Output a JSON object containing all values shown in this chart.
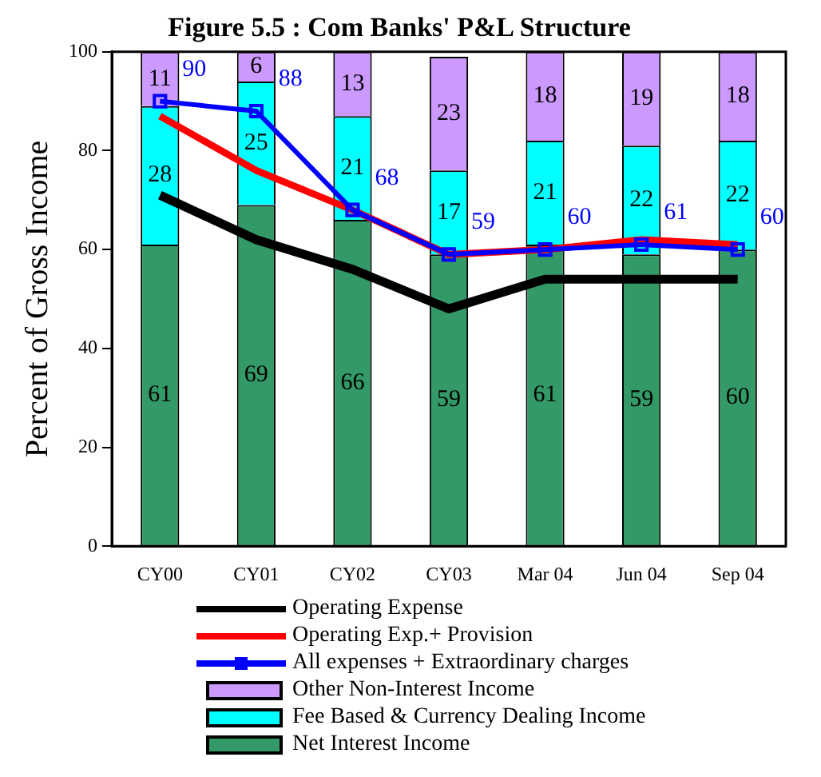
{
  "chart_data": {
    "type": "bar",
    "title": "Figure 5.5 : Com Banks' P&L Structure",
    "ylabel": "Percent of Gross Income",
    "stacked": true,
    "categories": [
      "CY00",
      "CY01",
      "CY02",
      "CY03",
      "Mar 04",
      "Jun 04",
      "Sep 04"
    ],
    "series": [
      {
        "name": "Net Interest Income",
        "color": "#339966",
        "values": [
          61,
          69,
          66,
          59,
          61,
          59,
          60
        ],
        "value_labels": [
          "61",
          "69",
          "66",
          "59",
          "61",
          "59",
          "60"
        ]
      },
      {
        "name": "Fee Based & Currency Dealing Income",
        "color": "#00ffff",
        "values": [
          28,
          25,
          21,
          17,
          21,
          22,
          22
        ],
        "value_labels": [
          "28",
          "25",
          "21",
          "17",
          "21",
          "22",
          "22"
        ]
      },
      {
        "name": "Other Non-Interest Income",
        "color": "#cc99ff",
        "values": [
          11,
          6,
          13,
          23,
          18,
          19,
          18
        ],
        "value_labels": [
          "11",
          "6",
          "13",
          "23",
          "18",
          "19",
          "18"
        ]
      },
      {
        "name": "All expenses + Extraordinary charges",
        "type": "line",
        "marker": "square",
        "color": "#0000ff",
        "values": [
          90,
          88,
          68,
          59,
          60,
          61,
          60
        ],
        "value_labels": [
          "90",
          "88",
          "68",
          "59",
          "60",
          "61",
          "60"
        ]
      },
      {
        "name": "Operating Exp.+ Provision",
        "type": "line",
        "marker": "none",
        "color": "#ff0000",
        "values": [
          87,
          76,
          68,
          59,
          60,
          62,
          61
        ]
      },
      {
        "name": "Operating Expense",
        "type": "line",
        "marker": "none",
        "color": "#000000",
        "values": [
          71,
          62,
          56,
          48,
          54,
          54,
          54
        ]
      }
    ],
    "ylim": [
      0,
      100
    ],
    "yticks": [
      0,
      20,
      40,
      60,
      80,
      100
    ],
    "grid": false,
    "legend": "bottom"
  }
}
